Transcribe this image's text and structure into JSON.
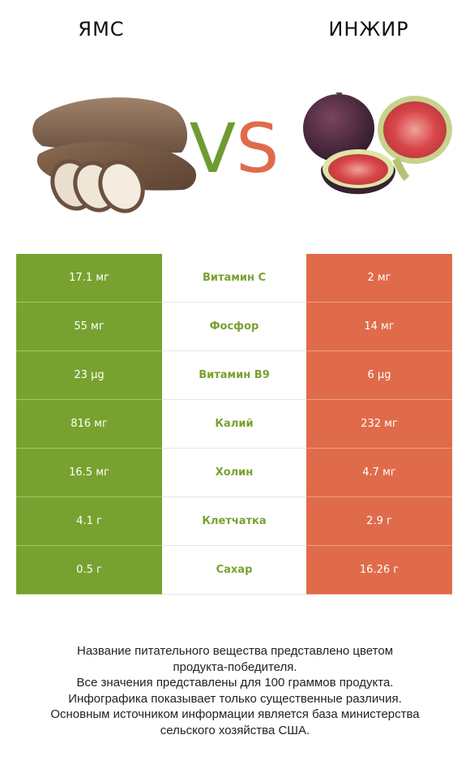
{
  "header": {
    "left_title": "ЯМС",
    "right_title": "ИНЖИР",
    "vs_v": "V",
    "vs_s": "S"
  },
  "colors": {
    "left": "#78a22f",
    "right": "#e06b4b",
    "vs_v": "#6e9b31",
    "vs_s": "#e06b4b"
  },
  "rows": [
    {
      "left": "17.1 мг",
      "nutrient": "Витамин C",
      "right": "2 мг",
      "winner": "left"
    },
    {
      "left": "55 мг",
      "nutrient": "Фосфор",
      "right": "14 мг",
      "winner": "left"
    },
    {
      "left": "23 µg",
      "nutrient": "Витамин B9",
      "right": "6 µg",
      "winner": "left"
    },
    {
      "left": "816 мг",
      "nutrient": "Калий",
      "right": "232 мг",
      "winner": "left"
    },
    {
      "left": "16.5 мг",
      "nutrient": "Холин",
      "right": "4.7 мг",
      "winner": "left"
    },
    {
      "left": "4.1 г",
      "nutrient": "Клетчатка",
      "right": "2.9 г",
      "winner": "left"
    },
    {
      "left": "0.5 г",
      "nutrient": "Сахар",
      "right": "16.26 г",
      "winner": "left"
    }
  ],
  "footer": {
    "line1": "Название питательного вещества представлено цветом",
    "line2": "продукта-победителя.",
    "line3": "Все значения представлены для 100 граммов продукта.",
    "line4": "Инфографика показывает только существенные различия.",
    "line5": "Основным источником информации является база министерства",
    "line6": "сельского хозяйства США."
  }
}
